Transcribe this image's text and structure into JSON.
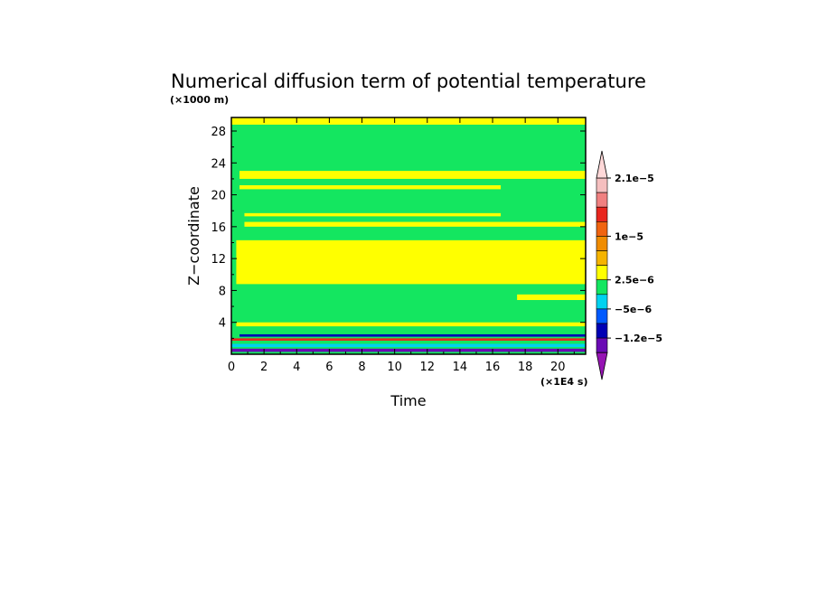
{
  "chart_data": {
    "type": "heatmap",
    "title": "Numerical diffusion term of potential temperature",
    "xlabel": "Time",
    "ylabel": "Z−coordinate",
    "x_unit": "(×1E4 s)",
    "y_unit": "(×1000 m)",
    "xlim": [
      0,
      21.7
    ],
    "ylim": [
      0,
      29.7
    ],
    "x_ticks": [
      0,
      2,
      4,
      6,
      8,
      10,
      12,
      14,
      16,
      18,
      20
    ],
    "y_ticks": [
      4,
      8,
      12,
      16,
      20,
      24,
      28
    ],
    "colorbar": {
      "labels": [
        "2.1e−5",
        "1e−5",
        "2.5e−6",
        "−5e−6",
        "−1.2e−5"
      ],
      "label_levels": [
        2.1e-05,
        1e-05,
        2.5e-06,
        -5e-06,
        -1.2e-05
      ],
      "colors_top_to_bottom": [
        "#f5bfbf",
        "#f08080",
        "#e8261e",
        "#f06410",
        "#f08c00",
        "#f5b400",
        "#ffff00",
        "#14e660",
        "#00d2f0",
        "#005aff",
        "#0000b4",
        "#6a0ab4"
      ],
      "max_arrow_color": "#ffd8d8",
      "min_arrow_color": "#9614b4",
      "extend": "both"
    },
    "bands": [
      {
        "z": [
          28.8,
          29.7
        ],
        "t": [
          0,
          21.7
        ],
        "class": "2.5e-6 to 1e-5"
      },
      {
        "z": [
          22.0,
          23.0
        ],
        "t": [
          0.5,
          21.7
        ],
        "class": "2.5e-6 to 1e-5"
      },
      {
        "z": [
          20.7,
          21.2
        ],
        "t": [
          0.5,
          16.5
        ],
        "class": "2.5e-6 to 1e-5"
      },
      {
        "z": [
          17.3,
          17.7
        ],
        "t": [
          0.8,
          16.5
        ],
        "class": "2.5e-6 to 1e-5"
      },
      {
        "z": [
          16.0,
          16.6
        ],
        "t": [
          0.8,
          21.7
        ],
        "class": "2.5e-6 to 1e-5"
      },
      {
        "z": [
          8.8,
          14.3
        ],
        "t": [
          0.3,
          21.7
        ],
        "class": "2.5e-6 to 1e-5"
      },
      {
        "z": [
          6.8,
          7.5
        ],
        "t": [
          17.5,
          21.7
        ],
        "class": "2.5e-6 to 1e-5"
      },
      {
        "z": [
          3.5,
          4.0
        ],
        "t": [
          0.3,
          21.7
        ],
        "class": "2.5e-6 to 1e-5"
      },
      {
        "z": [
          2.2,
          2.5
        ],
        "t": [
          0.5,
          21.7
        ],
        "class": "-5e-6 to -1.2e-5"
      },
      {
        "z": [
          1.7,
          2.0
        ],
        "t": [
          0,
          21.7
        ],
        "class": "1e-5 to 2.1e-5"
      },
      {
        "z": [
          0.9,
          1.3
        ],
        "t": [
          0,
          21.7
        ],
        "class": "-5e-6 to 0"
      },
      {
        "z": [
          0.3,
          0.7
        ],
        "t": [
          0,
          21.7
        ],
        "class": "-1.2e-5 to -5e-6"
      }
    ]
  }
}
